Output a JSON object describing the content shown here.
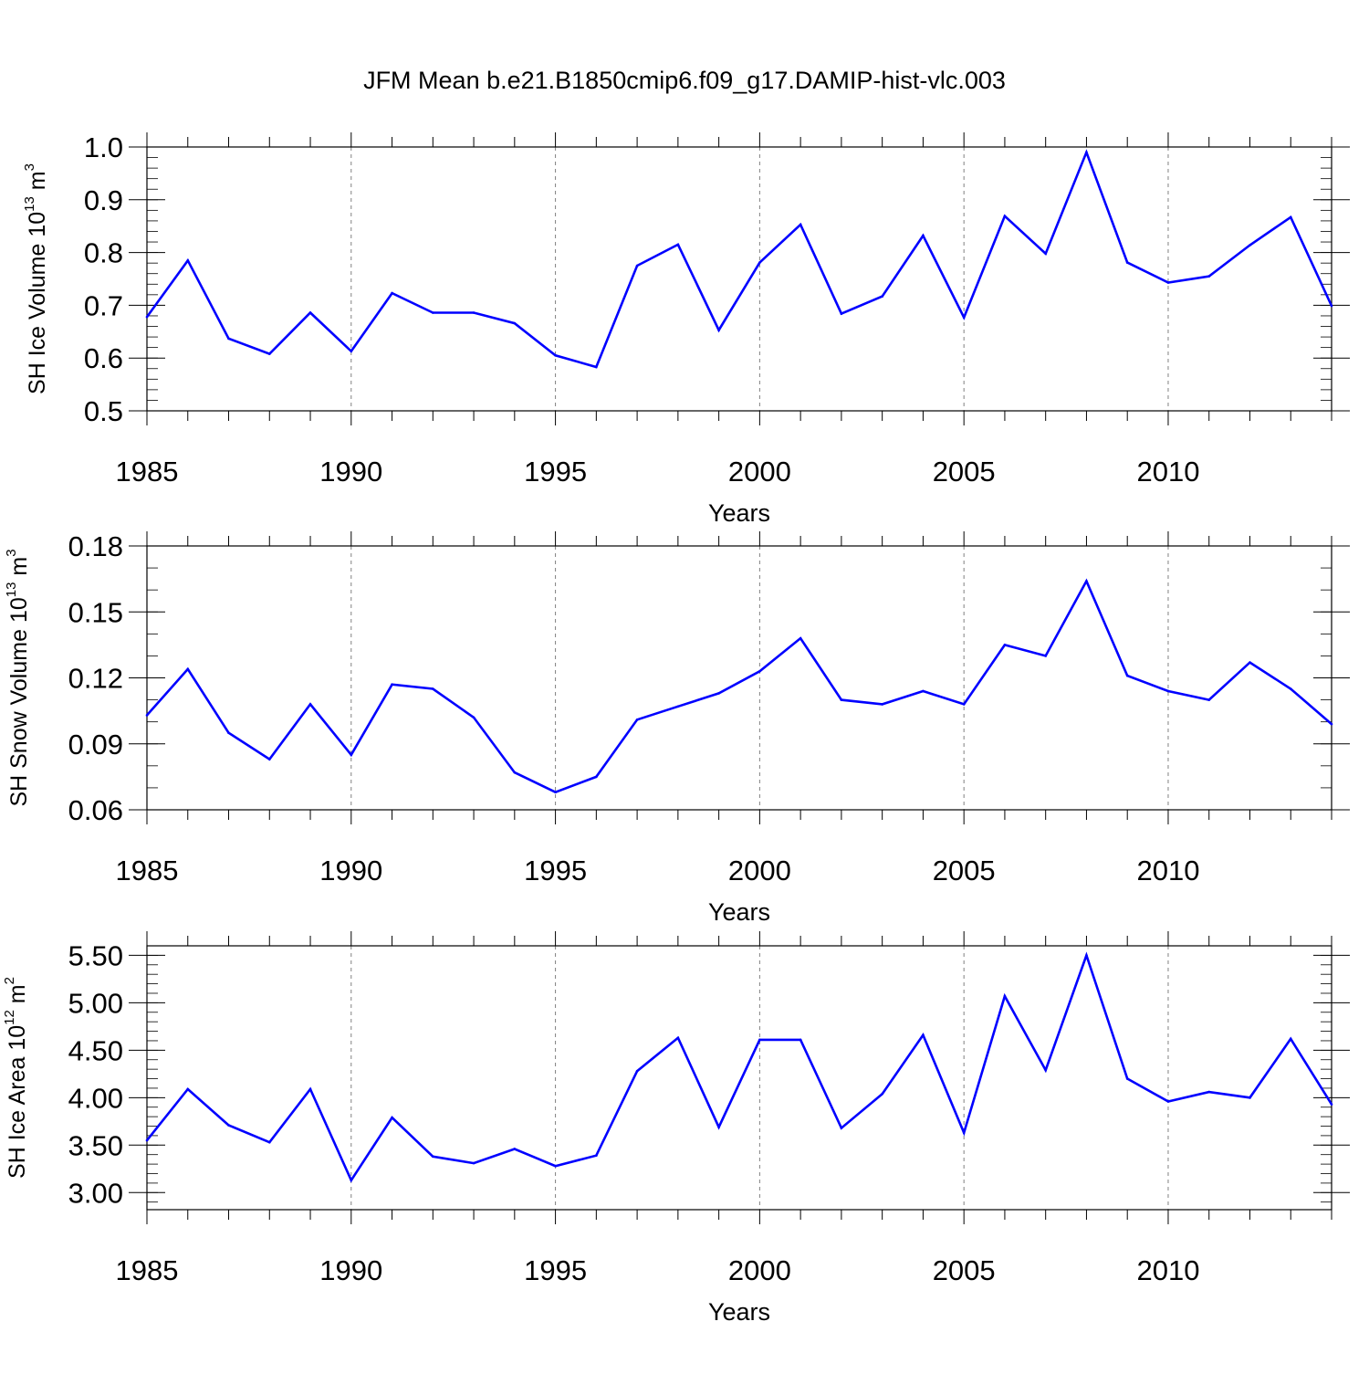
{
  "title": "JFM Mean b.e21.B1850cmip6.f09_g17.DAMIP-hist-vlc.003",
  "colors": {
    "line": "#0000ff",
    "axes": "#000000",
    "grid": "#808080",
    "background": "#ffffff"
  },
  "chart_data": [
    {
      "type": "line",
      "xlabel": "Years",
      "ylabel_parts": [
        "SH Ice Volume 10",
        "13",
        " m",
        "3"
      ],
      "xlim": [
        1985,
        2014
      ],
      "ylim": [
        0.5,
        1.0
      ],
      "xticks": [
        "1985",
        "1990",
        "1995",
        "2000",
        "2005",
        "2010"
      ],
      "yticks": [
        "0.5",
        "0.6",
        "0.7",
        "0.8",
        "0.9",
        "1.0"
      ],
      "ytick_values": [
        0.5,
        0.6,
        0.7,
        0.8,
        0.9,
        1.0
      ],
      "y_minor_step": 0.02,
      "grid": "vertical dashed at major x ticks",
      "x": [
        1985,
        1986,
        1987,
        1988,
        1989,
        1990,
        1991,
        1992,
        1993,
        1994,
        1995,
        1996,
        1997,
        1998,
        1999,
        2000,
        2001,
        2002,
        2003,
        2004,
        2005,
        2006,
        2007,
        2008,
        2009,
        2010,
        2011,
        2012,
        2013,
        2014
      ],
      "values": [
        0.678,
        0.785,
        0.637,
        0.608,
        0.686,
        0.613,
        0.723,
        0.686,
        0.686,
        0.666,
        0.605,
        0.583,
        0.775,
        0.815,
        0.653,
        0.781,
        0.853,
        0.684,
        0.717,
        0.832,
        0.677,
        0.869,
        0.798,
        0.99,
        0.781,
        0.743,
        0.755,
        0.814,
        0.867,
        0.699
      ]
    },
    {
      "type": "line",
      "xlabel": "Years",
      "ylabel_parts": [
        "SH Snow Volume 10",
        "13",
        " m",
        "3"
      ],
      "xlim": [
        1985,
        2014
      ],
      "ylim": [
        0.06,
        0.18
      ],
      "xticks": [
        "1985",
        "1990",
        "1995",
        "2000",
        "2005",
        "2010"
      ],
      "yticks": [
        "0.06",
        "0.09",
        "0.12",
        "0.15",
        "0.18"
      ],
      "ytick_values": [
        0.06,
        0.09,
        0.12,
        0.15,
        0.18
      ],
      "y_minor_step": 0.01,
      "grid": "vertical dashed at major x ticks",
      "x": [
        1985,
        1986,
        1987,
        1988,
        1989,
        1990,
        1991,
        1992,
        1993,
        1994,
        1995,
        1996,
        1997,
        1998,
        1999,
        2000,
        2001,
        2002,
        2003,
        2004,
        2005,
        2006,
        2007,
        2008,
        2009,
        2010,
        2011,
        2012,
        2013,
        2014
      ],
      "values": [
        0.103,
        0.124,
        0.095,
        0.083,
        0.108,
        0.085,
        0.117,
        0.115,
        0.102,
        0.077,
        0.068,
        0.075,
        0.101,
        0.107,
        0.113,
        0.123,
        0.138,
        0.11,
        0.108,
        0.114,
        0.108,
        0.135,
        0.13,
        0.164,
        0.121,
        0.114,
        0.11,
        0.127,
        0.115,
        0.099
      ]
    },
    {
      "type": "line",
      "xlabel": "Years",
      "ylabel_parts": [
        "SH Ice Area 10",
        "12",
        " m",
        "2"
      ],
      "xlim": [
        1985,
        2014
      ],
      "ylim": [
        2.82,
        5.6
      ],
      "xticks": [
        "1985",
        "1990",
        "1995",
        "2000",
        "2005",
        "2010"
      ],
      "yticks": [
        "3.00",
        "3.50",
        "4.00",
        "4.50",
        "5.00",
        "5.50"
      ],
      "ytick_values": [
        3.0,
        3.5,
        4.0,
        4.5,
        5.0,
        5.5
      ],
      "y_minor_step": 0.1,
      "grid": "vertical dashed at major x ticks",
      "x": [
        1985,
        1986,
        1987,
        1988,
        1989,
        1990,
        1991,
        1992,
        1993,
        1994,
        1995,
        1996,
        1997,
        1998,
        1999,
        2000,
        2001,
        2002,
        2003,
        2004,
        2005,
        2006,
        2007,
        2008,
        2009,
        2010,
        2011,
        2012,
        2013,
        2014
      ],
      "values": [
        3.55,
        4.09,
        3.71,
        3.53,
        4.09,
        3.13,
        3.79,
        3.38,
        3.31,
        3.46,
        3.28,
        3.39,
        4.28,
        4.63,
        3.69,
        4.61,
        4.61,
        3.68,
        4.04,
        4.66,
        3.63,
        5.07,
        4.29,
        5.5,
        4.2,
        3.96,
        4.06,
        4.0,
        4.62,
        3.93
      ]
    }
  ]
}
